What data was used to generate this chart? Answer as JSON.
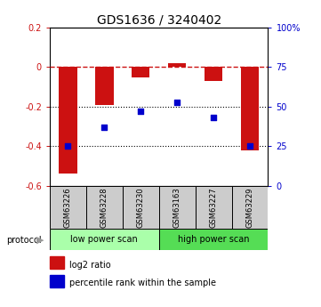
{
  "title": "GDS1636 / 3240402",
  "categories": [
    "GSM63226",
    "GSM63228",
    "GSM63230",
    "GSM63163",
    "GSM63227",
    "GSM63229"
  ],
  "bar_values": [
    -0.54,
    -0.19,
    -0.05,
    0.02,
    -0.07,
    -0.42
  ],
  "dot_percentiles": [
    25,
    37,
    47,
    53,
    43,
    25
  ],
  "bar_color": "#cc1111",
  "dot_color": "#0000cc",
  "ylim_left": [
    -0.6,
    0.2
  ],
  "ylim_right": [
    0,
    100
  ],
  "dotted_lines": [
    -0.2,
    -0.4
  ],
  "right_ticks": [
    0,
    25,
    50,
    75,
    100
  ],
  "right_tick_labels": [
    "0",
    "25",
    "50",
    "75",
    "100%"
  ],
  "protocol_labels": [
    "low power scan",
    "high power scan"
  ],
  "protocol_colors": [
    "#aaffaa",
    "#55dd55"
  ],
  "legend_labels": [
    "log2 ratio",
    "percentile rank within the sample"
  ],
  "title_fontsize": 10,
  "axis_label_color_left": "#cc1111",
  "axis_label_color_right": "#0000cc",
  "label_box_color": "#cccccc",
  "bar_width": 0.5
}
